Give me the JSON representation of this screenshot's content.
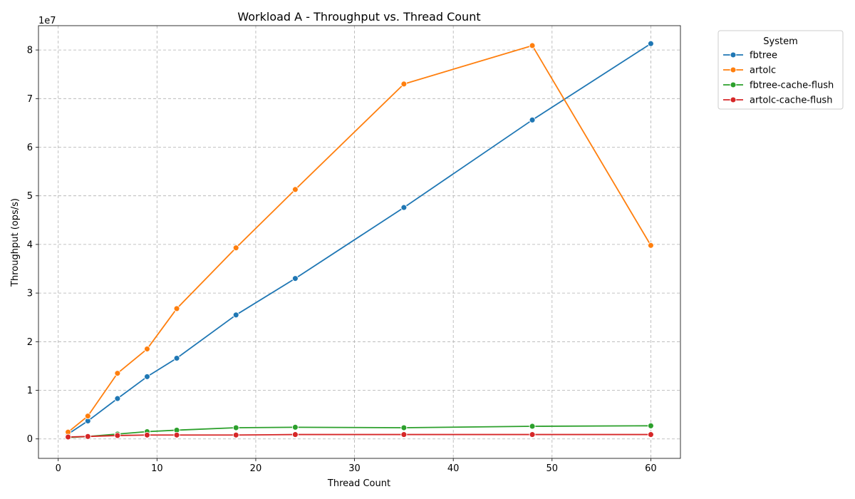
{
  "chart_data": {
    "type": "line",
    "title": "Workload A - Throughput vs. Thread Count",
    "xlabel": "Thread Count",
    "ylabel": "Throughput (ops/s)",
    "y_offset_label": "1e7",
    "y_scale": 10000000,
    "xlim": [
      -2,
      63
    ],
    "ylim": [
      -4000000,
      85000000
    ],
    "x_ticks": [
      0,
      10,
      20,
      30,
      40,
      50,
      60
    ],
    "x_tick_labels": [
      "0",
      "10",
      "20",
      "30",
      "40",
      "50",
      "60"
    ],
    "y_ticks": [
      0,
      10000000,
      20000000,
      30000000,
      40000000,
      50000000,
      60000000,
      70000000,
      80000000
    ],
    "y_tick_labels": [
      "0",
      "1",
      "2",
      "3",
      "4",
      "5",
      "6",
      "7",
      "8"
    ],
    "grid": true,
    "legend": {
      "title": "System",
      "placement": "outside-top-right"
    },
    "x": [
      1,
      3,
      6,
      9,
      12,
      18,
      24,
      35,
      48,
      60
    ],
    "series": [
      {
        "name": "fbtree",
        "color": "#1f77b4",
        "values": [
          1000000,
          3700000,
          8300000,
          12800000,
          16600000,
          25500000,
          33000000,
          47600000,
          65600000,
          81300000
        ]
      },
      {
        "name": "artolc",
        "color": "#ff7f0e",
        "values": [
          1400000,
          4700000,
          13500000,
          18500000,
          26800000,
          39300000,
          51300000,
          73000000,
          80900000,
          39800000
        ]
      },
      {
        "name": "fbtree-cache-flush",
        "color": "#2ca02c",
        "values": [
          300000,
          500000,
          1000000,
          1500000,
          1800000,
          2300000,
          2400000,
          2300000,
          2600000,
          2700000
        ]
      },
      {
        "name": "artolc-cache-flush",
        "color": "#d62728",
        "values": [
          400000,
          500000,
          700000,
          800000,
          800000,
          800000,
          900000,
          900000,
          900000,
          900000
        ]
      }
    ]
  }
}
